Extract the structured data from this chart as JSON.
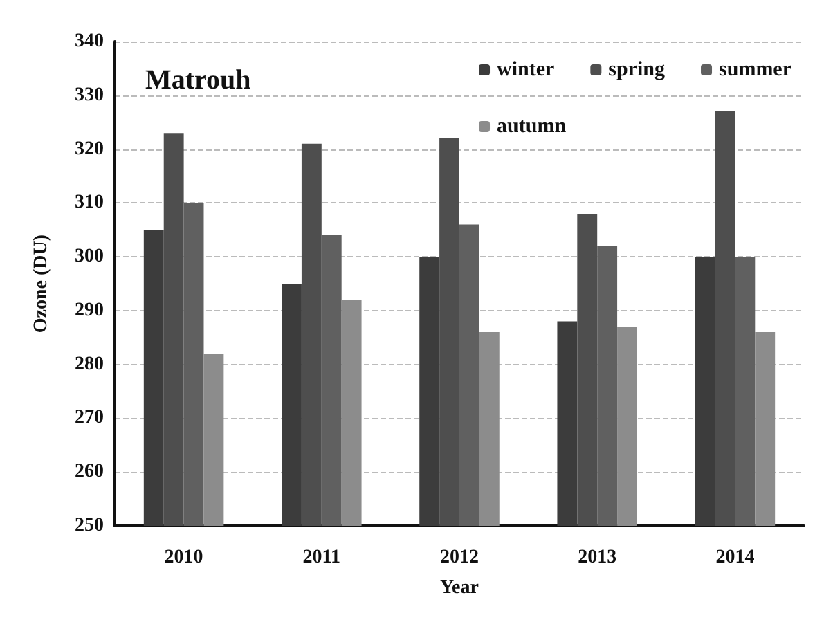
{
  "chart_data": {
    "type": "bar",
    "xlabel": "Year",
    "ylabel": "Ozone (DU)",
    "annotations": [
      "Matrouh"
    ],
    "categories": [
      "2010",
      "2011",
      "2012",
      "2013",
      "2014"
    ],
    "series": [
      {
        "name": "winter",
        "color": "#3c3c3c",
        "values": [
          305,
          295,
          300,
          288,
          300
        ]
      },
      {
        "name": "spring",
        "color": "#4e4e4e",
        "values": [
          323,
          321,
          322,
          308,
          327
        ]
      },
      {
        "name": "summer",
        "color": "#606060",
        "values": [
          310,
          304,
          306,
          302,
          300
        ]
      },
      {
        "name": "autumn",
        "color": "#8c8c8c",
        "values": [
          282,
          292,
          286,
          287,
          286
        ]
      }
    ],
    "ylim": [
      250,
      340
    ],
    "yticks": [
      250,
      260,
      270,
      280,
      290,
      300,
      310,
      320,
      330,
      340
    ],
    "grid": "y",
    "legend": "top right"
  }
}
